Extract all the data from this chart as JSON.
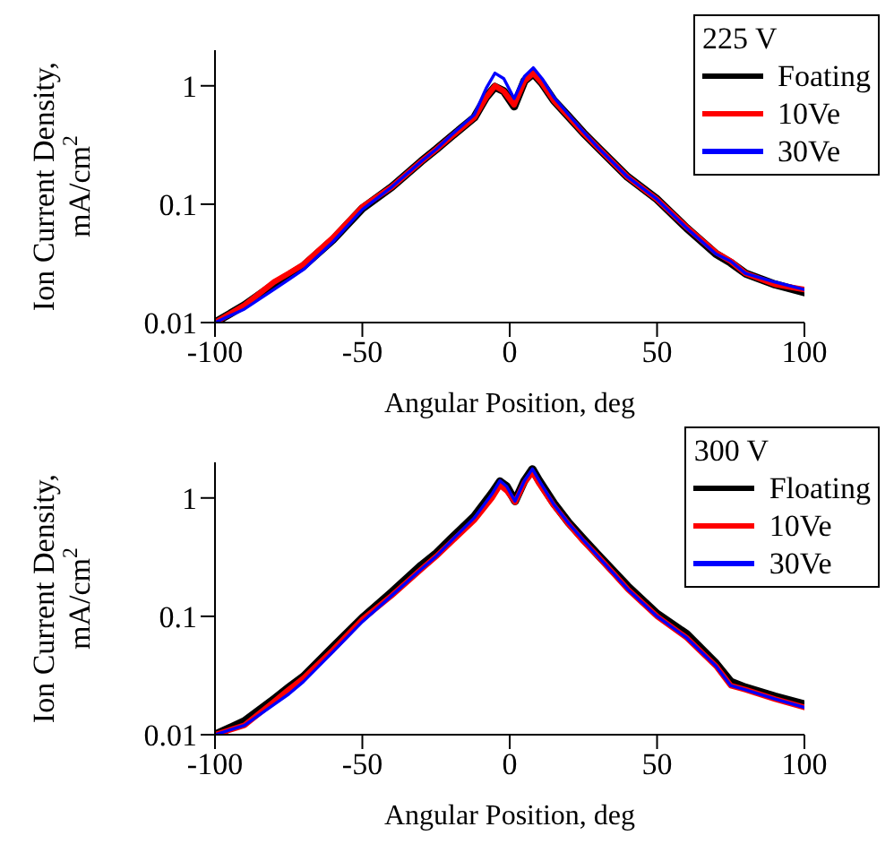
{
  "chart_data": [
    {
      "type": "line",
      "xlabel": "Angular Position, deg",
      "ylabel": "Ion Current Density, mA/cm$^{2}$",
      "legend_title": "225 V",
      "legend": "top right",
      "log": "y",
      "xlim": [
        -100,
        100
      ],
      "xticks": [
        -100,
        -50,
        0,
        50,
        100
      ],
      "ylim": [
        0.01,
        2
      ],
      "yticks": [
        0.01,
        0.1,
        1
      ],
      "line_style": "solid",
      "marker": "none",
      "series": [
        {
          "name": "Foating",
          "color": "#000000",
          "x": [
            -100,
            -90,
            -80,
            -75,
            -70,
            -60,
            -50,
            -40,
            -30,
            -25,
            -20,
            -12,
            -8,
            -5,
            -2,
            1.5,
            5,
            8,
            11,
            15,
            20,
            25,
            30,
            40,
            50,
            60,
            70,
            75,
            80,
            90,
            100
          ],
          "values": [
            0.01,
            0.014,
            0.021,
            0.025,
            0.03,
            0.05,
            0.092,
            0.14,
            0.23,
            0.29,
            0.37,
            0.54,
            0.8,
            0.98,
            0.9,
            0.67,
            1.1,
            1.27,
            1.05,
            0.75,
            0.55,
            0.4,
            0.3,
            0.17,
            0.11,
            0.063,
            0.038,
            0.032,
            0.026,
            0.021,
            0.018
          ]
        },
        {
          "name": "10Ve",
          "color": "#ff0000",
          "x": [
            -100,
            -90,
            -80,
            -75,
            -70,
            -60,
            -50,
            -40,
            -30,
            -25,
            -20,
            -12,
            -8,
            -5,
            -2,
            1.5,
            5,
            8,
            11,
            15,
            20,
            25,
            30,
            40,
            50,
            60,
            70,
            75,
            80,
            90,
            100
          ],
          "values": [
            0.01,
            0.014,
            0.022,
            0.026,
            0.031,
            0.052,
            0.095,
            0.14,
            0.23,
            0.29,
            0.37,
            0.54,
            0.8,
            1.0,
            0.9,
            0.69,
            1.1,
            1.28,
            1.05,
            0.75,
            0.55,
            0.4,
            0.3,
            0.17,
            0.11,
            0.064,
            0.039,
            0.033,
            0.026,
            0.021,
            0.019
          ]
        },
        {
          "name": "30Ve",
          "color": "#0000ff",
          "x": [
            -100,
            -90,
            -80,
            -75,
            -70,
            -60,
            -50,
            -40,
            -30,
            -25,
            -20,
            -12,
            -8,
            -5,
            -2,
            1.5,
            5,
            8,
            11,
            15,
            20,
            25,
            30,
            40,
            50,
            60,
            70,
            75,
            80,
            90,
            100
          ],
          "values": [
            0.01,
            0.013,
            0.019,
            0.023,
            0.028,
            0.048,
            0.09,
            0.14,
            0.23,
            0.29,
            0.38,
            0.57,
            0.95,
            1.28,
            1.15,
            0.78,
            1.2,
            1.42,
            1.15,
            0.8,
            0.57,
            0.41,
            0.3,
            0.17,
            0.11,
            0.063,
            0.038,
            0.033,
            0.026,
            0.022,
            0.019
          ]
        }
      ]
    },
    {
      "type": "line",
      "xlabel": "Angular Position, deg",
      "ylabel": "Ion Current Density, mA/cm$^{2}$",
      "legend_title": "300 V",
      "legend": "top right",
      "log": "y",
      "xlim": [
        -100,
        100
      ],
      "xticks": [
        -100,
        -50,
        0,
        50,
        100
      ],
      "ylim": [
        0.01,
        2
      ],
      "yticks": [
        0.01,
        0.1,
        1
      ],
      "line_style": "solid",
      "marker": "none",
      "series": [
        {
          "name": "Floating",
          "color": "#000000",
          "x": [
            -100,
            -90,
            -80,
            -75,
            -70,
            -60,
            -50,
            -40,
            -30,
            -25,
            -20,
            -12,
            -6,
            -3.3,
            -1,
            1.8,
            5,
            7.7,
            10,
            15,
            20,
            25,
            30,
            40,
            50,
            60,
            70,
            75,
            80,
            90,
            100
          ],
          "values": [
            0.01,
            0.013,
            0.02,
            0.025,
            0.031,
            0.055,
            0.097,
            0.16,
            0.27,
            0.34,
            0.45,
            0.7,
            1.1,
            1.38,
            1.25,
            0.94,
            1.4,
            1.75,
            1.4,
            0.9,
            0.62,
            0.45,
            0.33,
            0.18,
            0.105,
            0.071,
            0.04,
            0.028,
            0.025,
            0.021,
            0.018
          ]
        },
        {
          "name": "10Ve",
          "color": "#ff0000",
          "x": [
            -100,
            -90,
            -80,
            -75,
            -70,
            -60,
            -50,
            -40,
            -30,
            -25,
            -20,
            -12,
            -6,
            -3.3,
            -1,
            1.8,
            5,
            7.7,
            10,
            15,
            20,
            25,
            30,
            40,
            50,
            60,
            70,
            75,
            80,
            90,
            100
          ],
          "values": [
            0.01,
            0.012,
            0.019,
            0.024,
            0.03,
            0.052,
            0.094,
            0.15,
            0.25,
            0.32,
            0.42,
            0.65,
            1.0,
            1.28,
            1.15,
            0.92,
            1.35,
            1.65,
            1.32,
            0.86,
            0.6,
            0.43,
            0.32,
            0.17,
            0.1,
            0.066,
            0.038,
            0.026,
            0.024,
            0.02,
            0.017
          ]
        },
        {
          "name": "30Ve",
          "color": "#0000ff",
          "x": [
            -100,
            -90,
            -80,
            -75,
            -70,
            -60,
            -50,
            -40,
            -30,
            -25,
            -20,
            -12,
            -6,
            -3.3,
            -1,
            1.8,
            5,
            7.7,
            10,
            15,
            20,
            25,
            30,
            40,
            50,
            60,
            70,
            75,
            80,
            90,
            100
          ],
          "values": [
            0.01,
            0.012,
            0.018,
            0.022,
            0.028,
            0.05,
            0.09,
            0.15,
            0.25,
            0.32,
            0.43,
            0.68,
            1.08,
            1.4,
            1.25,
            0.94,
            1.4,
            1.76,
            1.4,
            0.88,
            0.61,
            0.44,
            0.32,
            0.17,
            0.1,
            0.066,
            0.038,
            0.026,
            0.024,
            0.02,
            0.017
          ]
        }
      ]
    }
  ]
}
